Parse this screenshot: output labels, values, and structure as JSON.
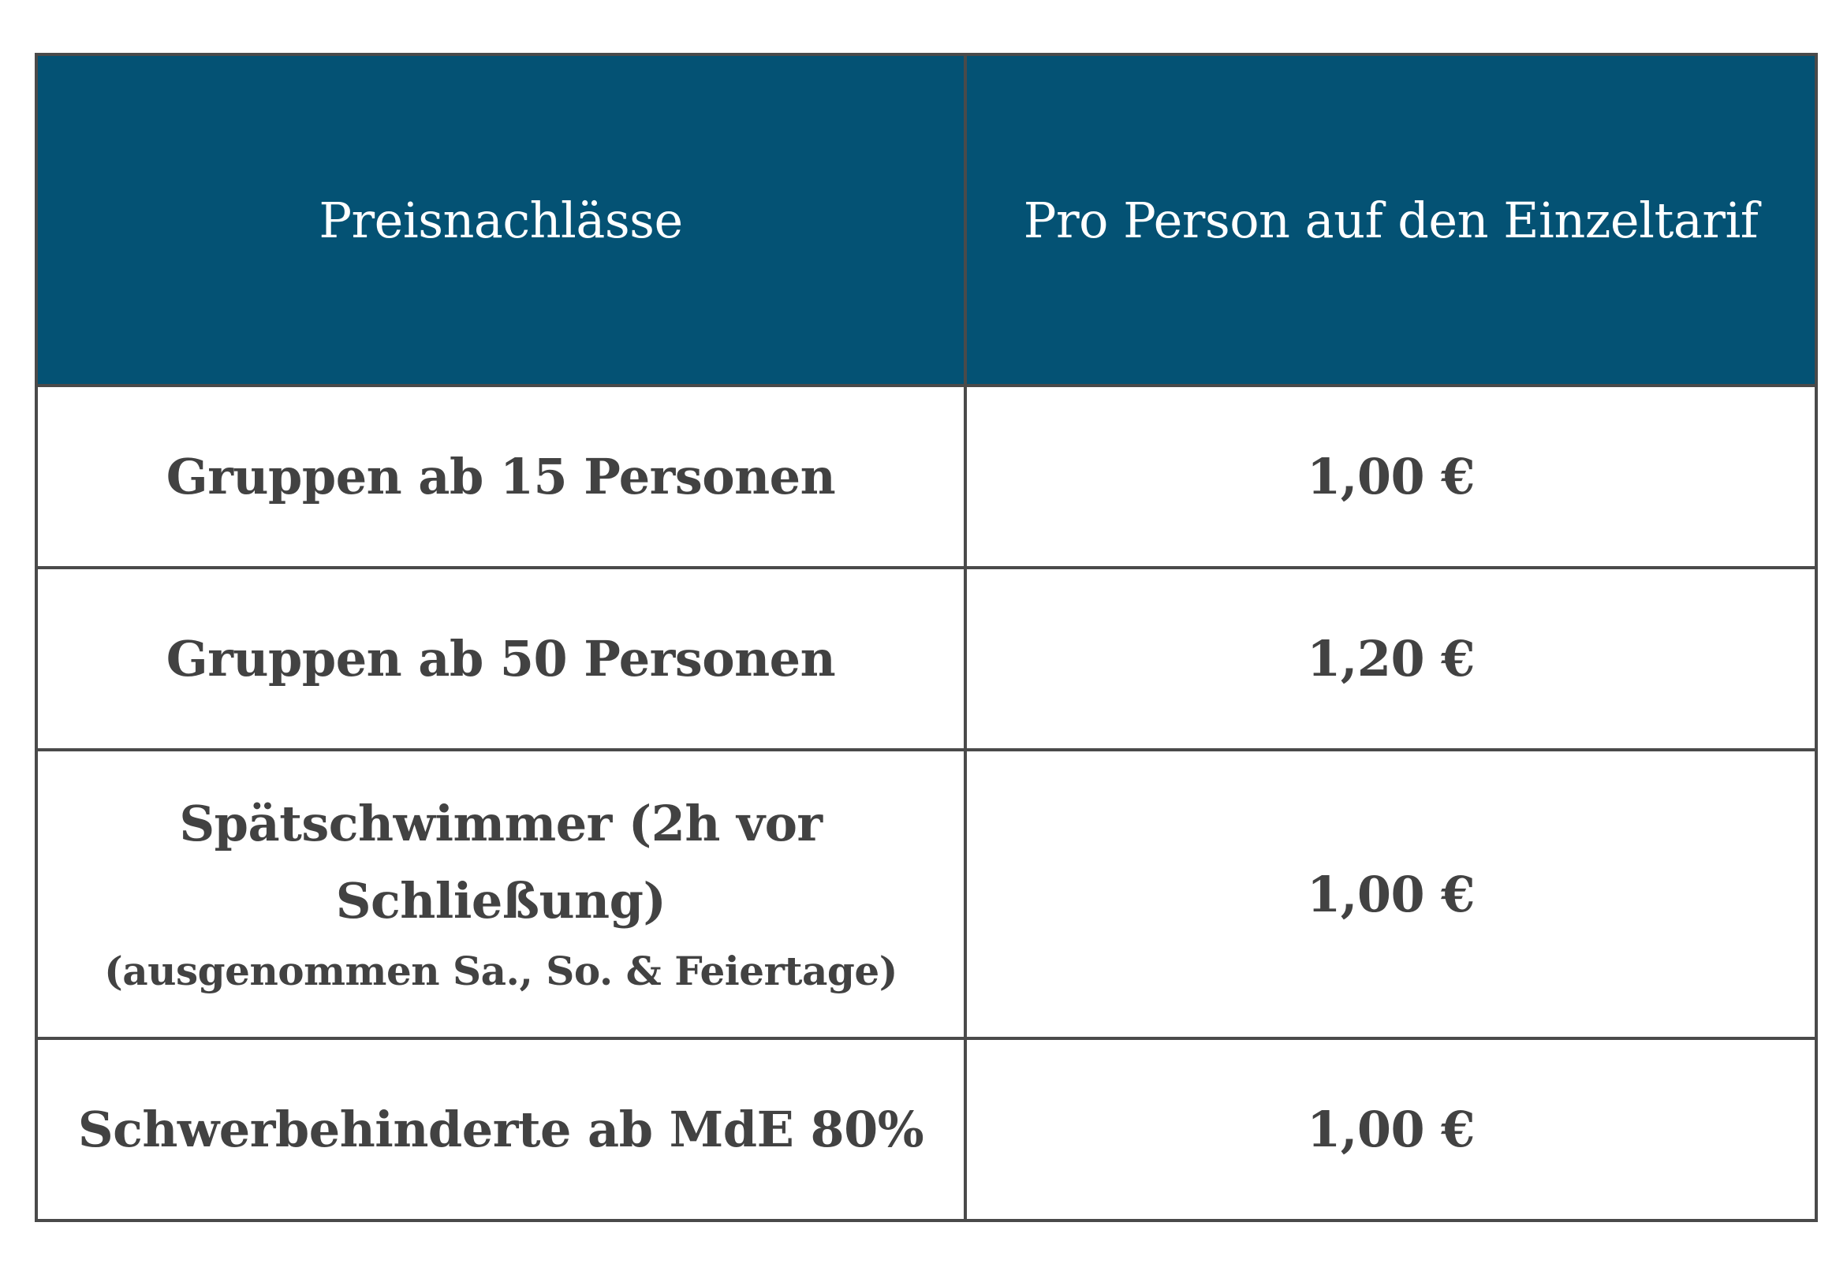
{
  "table": {
    "headers": [
      "Preisnachlässe",
      "Pro Person auf den Einzeltarif"
    ],
    "rows": [
      {
        "label": "Gruppen ab 15 Personen",
        "note": "",
        "price": "1,00 €"
      },
      {
        "label": "Gruppen ab 50 Personen",
        "note": "",
        "price": "1,20 €"
      },
      {
        "label_line1": "Spätschwimmer (2h vor",
        "label_line2": "Schließung)",
        "note": "(ausgenommen Sa., So. & Feiertage)",
        "price": "1,00 €"
      },
      {
        "label": "Schwerbehinderte ab MdE 80%",
        "note": "",
        "price": "1,00 €"
      }
    ]
  },
  "colors": {
    "header_background": "#045274",
    "header_text": "#ffffff",
    "body_text": "#424242",
    "border": "#4a4a4a"
  }
}
